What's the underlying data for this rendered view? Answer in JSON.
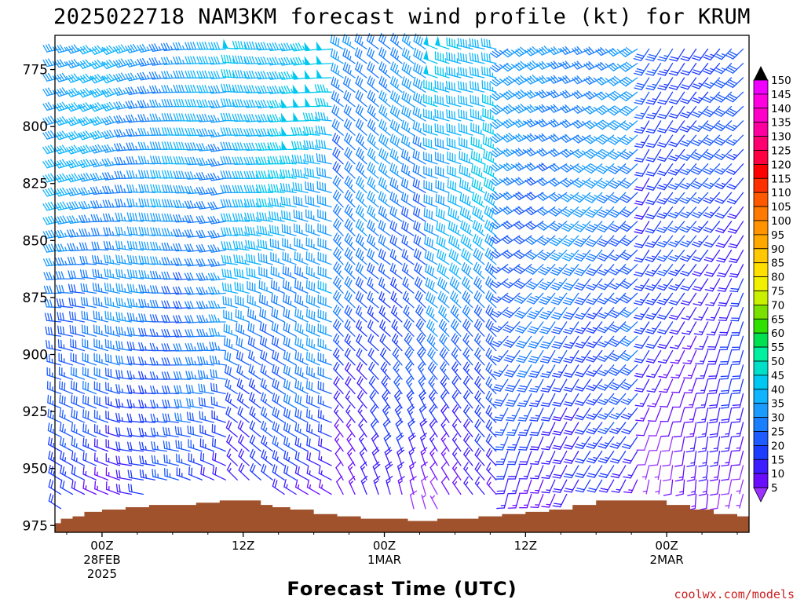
{
  "title": "2025022718 NAM3KM forecast wind profile (kt) for KRUM",
  "credit": "coolwx.com/models",
  "chart_data": {
    "type": "wind-barb-profile",
    "title": "2025022718 NAM3KM forecast wind profile (kt) for KRUM",
    "xlabel": "Forecast Time (UTC)",
    "ylabel": "",
    "units": "kt",
    "init_time": "2025022718",
    "model": "NAM3KM",
    "station": "KRUM",
    "x_hours_range": [
      -4,
      55
    ],
    "y_pressure_range": [
      978,
      760
    ],
    "x_ticks": [
      {
        "hour": 0,
        "label": "00Z",
        "sub": [
          "28FEB",
          "2025"
        ]
      },
      {
        "hour": 12,
        "label": "12Z",
        "sub": []
      },
      {
        "hour": 24,
        "label": "00Z",
        "sub": [
          "1MAR"
        ]
      },
      {
        "hour": 36,
        "label": "12Z",
        "sub": []
      },
      {
        "hour": 48,
        "label": "00Z",
        "sub": [
          "2MAR"
        ]
      }
    ],
    "y_ticks": [
      775,
      800,
      825,
      850,
      875,
      900,
      925,
      950,
      975
    ],
    "colorbar": {
      "labels": [
        5,
        10,
        15,
        20,
        25,
        30,
        35,
        40,
        45,
        50,
        55,
        60,
        65,
        70,
        75,
        80,
        85,
        90,
        95,
        100,
        105,
        110,
        115,
        120,
        125,
        130,
        135,
        140,
        145,
        150
      ],
      "colors": [
        "#9b30ff",
        "#6a0dff",
        "#3d1cff",
        "#1c3cff",
        "#1e5cff",
        "#1a7fff",
        "#1a9cff",
        "#10b4ff",
        "#00c8f0",
        "#00e0c8",
        "#00f0a0",
        "#00e050",
        "#30e000",
        "#7ae000",
        "#c8f000",
        "#f0f000",
        "#ffe000",
        "#ffc800",
        "#ffa800",
        "#ff9400",
        "#ff7a00",
        "#ff5a00",
        "#ff3000",
        "#ff0000",
        "#ff0040",
        "#ff0070",
        "#ff00a0",
        "#ff00c8",
        "#ff00e0",
        "#f000ff"
      ]
    },
    "terrain_surface_pressure": [
      {
        "hour": -4,
        "p": 974
      },
      {
        "hour": -3,
        "p": 972
      },
      {
        "hour": -2,
        "p": 971
      },
      {
        "hour": -1,
        "p": 969
      },
      {
        "hour": 1,
        "p": 968
      },
      {
        "hour": 3,
        "p": 967
      },
      {
        "hour": 5,
        "p": 966
      },
      {
        "hour": 7,
        "p": 966
      },
      {
        "hour": 9,
        "p": 965
      },
      {
        "hour": 11,
        "p": 964
      },
      {
        "hour": 12,
        "p": 964
      },
      {
        "hour": 13,
        "p": 964
      },
      {
        "hour": 14,
        "p": 966
      },
      {
        "hour": 15,
        "p": 967
      },
      {
        "hour": 17,
        "p": 968
      },
      {
        "hour": 19,
        "p": 970
      },
      {
        "hour": 21,
        "p": 971
      },
      {
        "hour": 23,
        "p": 972
      },
      {
        "hour": 25,
        "p": 972
      },
      {
        "hour": 27,
        "p": 973
      },
      {
        "hour": 28,
        "p": 973
      },
      {
        "hour": 29,
        "p": 972
      },
      {
        "hour": 31,
        "p": 972
      },
      {
        "hour": 33,
        "p": 971
      },
      {
        "hour": 35,
        "p": 970
      },
      {
        "hour": 37,
        "p": 969
      },
      {
        "hour": 39,
        "p": 968
      },
      {
        "hour": 41,
        "p": 966
      },
      {
        "hour": 43,
        "p": 964
      },
      {
        "hour": 45,
        "p": 964
      },
      {
        "hour": 47,
        "p": 964
      },
      {
        "hour": 49,
        "p": 966
      },
      {
        "hour": 51,
        "p": 968
      },
      {
        "hour": 53,
        "p": 970
      },
      {
        "hour": 55,
        "p": 971
      }
    ],
    "wind_regimes": [
      {
        "hours": [
          -4,
          1
        ],
        "upper_dir_deg": 255,
        "upper_kt": 40,
        "low_dir_deg": 300,
        "low_kt": 15
      },
      {
        "hours": [
          2,
          10
        ],
        "upper_dir_deg": 260,
        "upper_kt": 38,
        "low_dir_deg": 290,
        "low_kt": 20
      },
      {
        "hours": [
          11,
          19
        ],
        "upper_dir_deg": 270,
        "upper_kt": 45,
        "low_dir_deg": 310,
        "low_kt": 15
      },
      {
        "hours": [
          20,
          27
        ],
        "upper_dir_deg": 300,
        "upper_kt": 35,
        "low_dir_deg": 340,
        "low_kt": 10
      },
      {
        "hours": [
          28,
          33
        ],
        "upper_dir_deg": 290,
        "upper_kt": 45,
        "low_dir_deg": 330,
        "low_kt": 8
      },
      {
        "hours": [
          34,
          45
        ],
        "upper_dir_deg": 240,
        "upper_kt": 35,
        "low_dir_deg": 200,
        "low_kt": 15
      },
      {
        "hours": [
          46,
          55
        ],
        "upper_dir_deg": 220,
        "upper_kt": 25,
        "low_dir_deg": 190,
        "low_kt": 8
      }
    ]
  }
}
